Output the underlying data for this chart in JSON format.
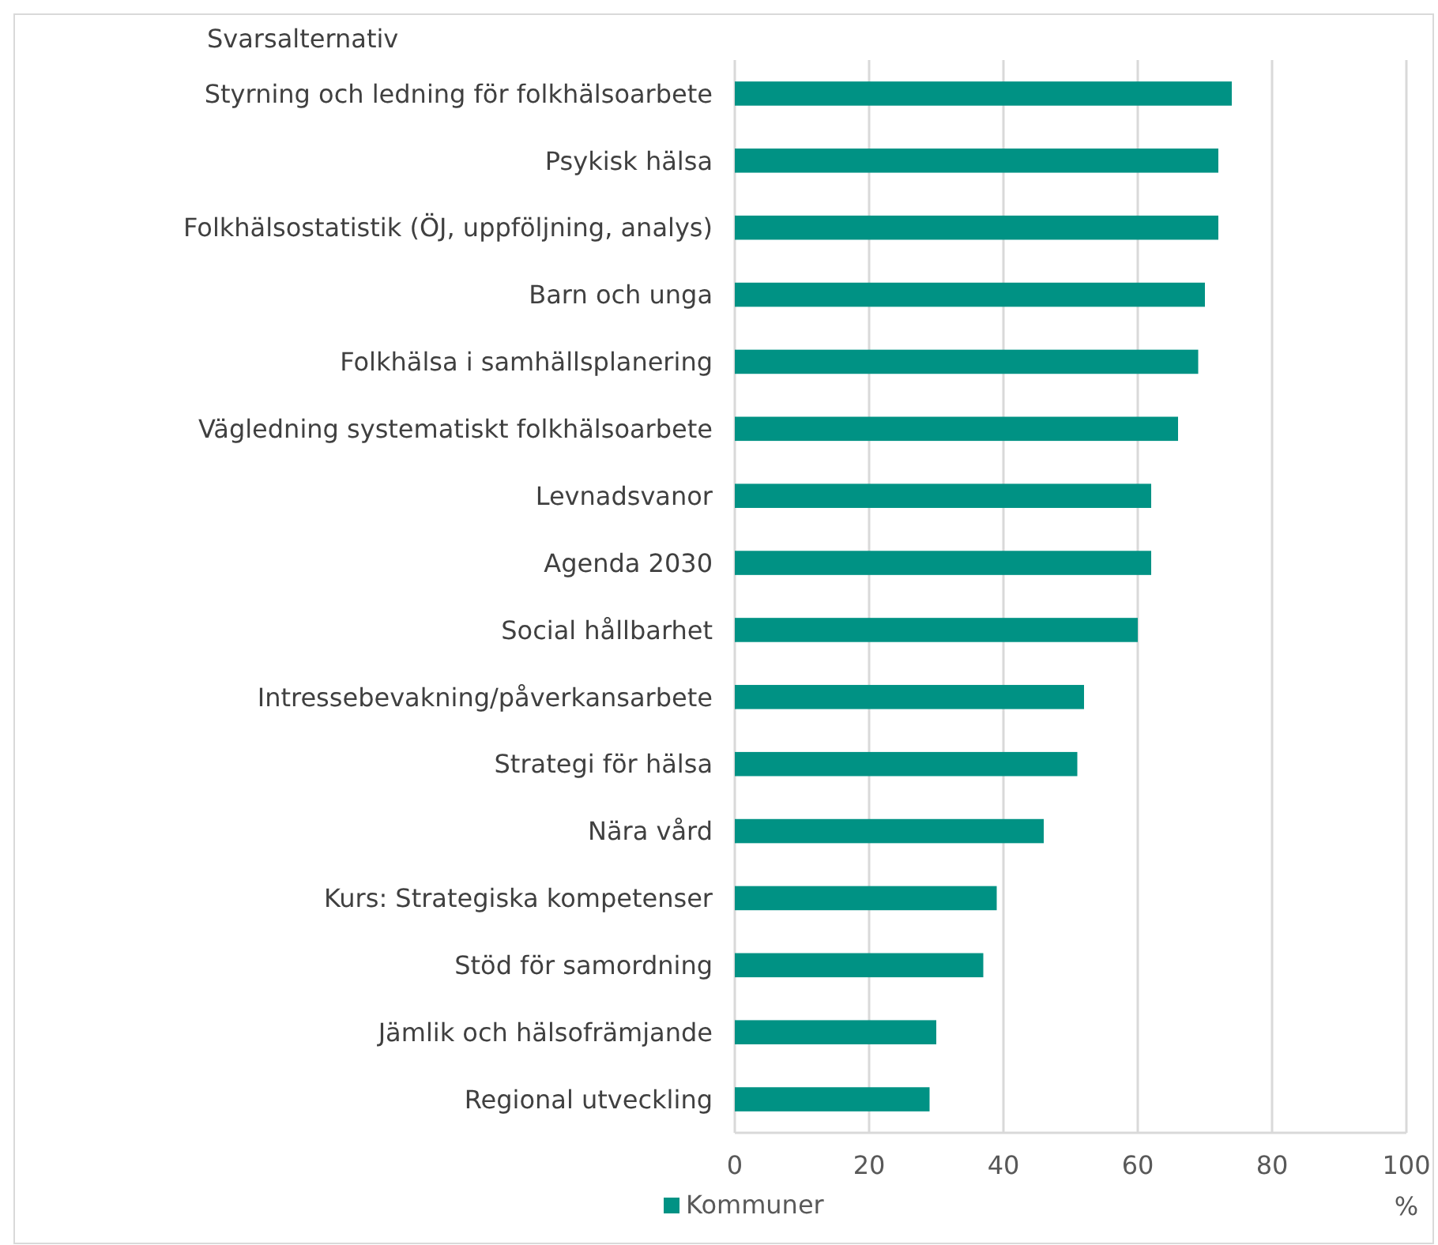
{
  "chart_data": {
    "type": "bar",
    "orientation": "horizontal",
    "ylabel": "Svarsalternativ",
    "xlabel": "%",
    "categories": [
      "Styrning och ledning för folkhälsoarbete",
      "Psykisk hälsa",
      "Folkhälsostatistik (ÖJ, uppföljning, analys)",
      "Barn och unga",
      "Folkhälsa i samhällsplanering",
      "Vägledning systematiskt folkhälsoarbete",
      "Levnadsvanor",
      "Agenda 2030",
      "Social hållbarhet",
      "Intressebevakning/påverkansarbete",
      "Strategi för hälsa",
      "Nära vård",
      "Kurs: Strategiska kompetenser",
      "Stöd för samordning",
      "Jämlik och hälsofrämjande",
      "Regional utveckling"
    ],
    "series": [
      {
        "name": "Kommuner",
        "color": "#009284",
        "values": [
          74,
          72,
          72,
          70,
          69,
          66,
          62,
          62,
          60,
          52,
          51,
          46,
          39,
          37,
          30,
          29
        ]
      }
    ],
    "xlim": [
      0,
      100
    ],
    "xticks": [
      0,
      20,
      40,
      60,
      80,
      100
    ],
    "grid": "x",
    "legend": "bottom left"
  }
}
